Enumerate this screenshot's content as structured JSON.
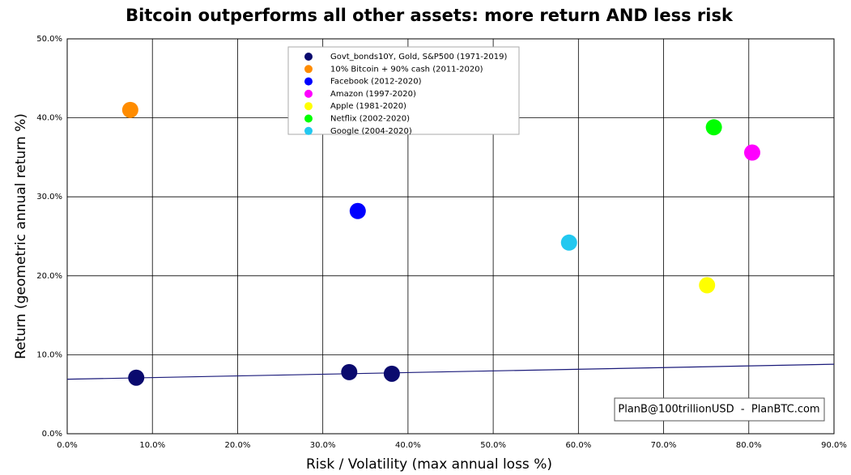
{
  "chart_data": {
    "type": "scatter",
    "title": "Bitcoin outperforms all other assets: more return AND less risk",
    "x_label": "Risk / Volatility (max annual loss %)",
    "y_label": "Return (geometric annual return %)",
    "xlim": [
      0,
      90
    ],
    "ylim": [
      0,
      50
    ],
    "xticks": [
      {
        "value": 0,
        "label": "0.0%"
      },
      {
        "value": 10,
        "label": "10.0%"
      },
      {
        "value": 20,
        "label": "20.0%"
      },
      {
        "value": 30,
        "label": "30.0%"
      },
      {
        "value": 40,
        "label": "40.0%"
      },
      {
        "value": 50,
        "label": "50.0%"
      },
      {
        "value": 60,
        "label": "60.0%"
      },
      {
        "value": 70,
        "label": "70.0%"
      },
      {
        "value": 80,
        "label": "80.0%"
      },
      {
        "value": 90,
        "label": "90.0%"
      }
    ],
    "yticks": [
      {
        "value": 0,
        "label": "0.0%"
      },
      {
        "value": 10,
        "label": "10.0%"
      },
      {
        "value": 20,
        "label": "20.0%"
      },
      {
        "value": 30,
        "label": "30.0%"
      },
      {
        "value": 40,
        "label": "40.0%"
      },
      {
        "value": 50,
        "label": "50.0%"
      }
    ],
    "grid": true,
    "legend": "upper center",
    "series": [
      {
        "name": "Govt_bonds10Y, Gold, S&P500 (1971-2019)",
        "color": "#0a0a6e",
        "x": [
          8.1,
          33.1,
          38.1
        ],
        "values": [
          7.1,
          7.8,
          7.6
        ]
      },
      {
        "name": "10% Bitcoin + 90% cash (2011-2020)",
        "color": "#ff8c00",
        "x": [
          7.4
        ],
        "values": [
          41.0
        ]
      },
      {
        "name": "Facebook (2012-2020)",
        "color": "#0000ff",
        "x": [
          34.1
        ],
        "values": [
          28.2
        ]
      },
      {
        "name": "Amazon (1997-2020)",
        "color": "#ff00ff",
        "x": [
          80.4
        ],
        "values": [
          35.6
        ]
      },
      {
        "name": "Apple (1981-2020)",
        "color": "#ffff00",
        "x": [
          75.1
        ],
        "values": [
          18.8
        ]
      },
      {
        "name": "Netflix (2002-2020)",
        "color": "#00ff00",
        "x": [
          75.9
        ],
        "values": [
          38.8
        ]
      },
      {
        "name": "Google (2004-2020)",
        "color": "#22c8f0",
        "x": [
          58.9
        ],
        "values": [
          24.2
        ]
      }
    ],
    "trendline": {
      "color": "#1a1a7a",
      "x": [
        0,
        90
      ],
      "values": [
        6.9,
        8.8
      ]
    },
    "annotation": "PlanB@100trillionUSD  -  PlanBTC.com"
  }
}
